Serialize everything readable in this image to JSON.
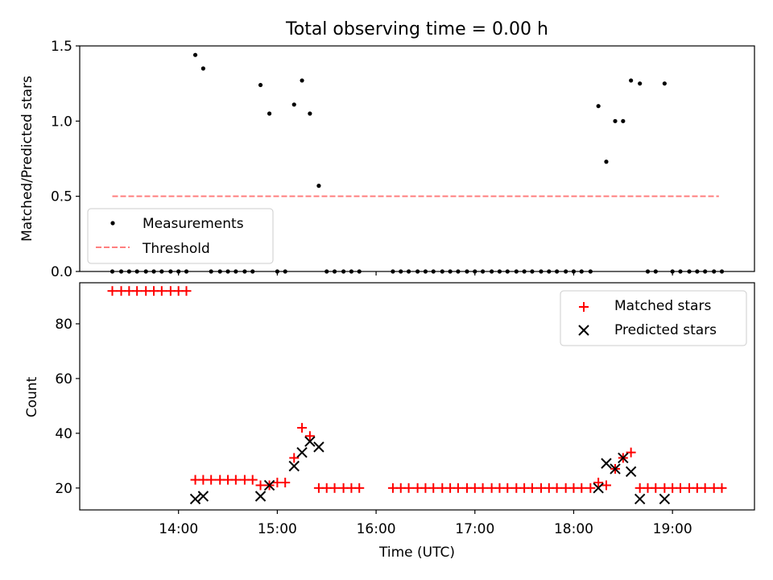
{
  "chart_data": [
    {
      "type": "scatter",
      "title": "Total observing time = 0.00 h",
      "xlabel": "",
      "ylabel": "Matched/Predicted stars",
      "xlim": [
        13.0,
        19.83
      ],
      "ylim": [
        0.0,
        1.5
      ],
      "yticks": [
        0.0,
        0.5,
        1.0,
        1.5
      ],
      "ytick_labels": [
        "0.0",
        "0.5",
        "1.0",
        "1.5"
      ],
      "xticks": [
        14,
        15,
        16,
        17,
        18,
        19
      ],
      "threshold": {
        "name": "Threshold",
        "value": 0.5,
        "x_range": [
          13.33,
          19.47
        ],
        "color": "#ff7f7f"
      },
      "series": [
        {
          "name": "Measurements",
          "color": "#000000",
          "x": [
            13.33,
            13.42,
            13.5,
            13.58,
            13.67,
            13.75,
            13.83,
            13.92,
            14.0,
            14.08,
            14.17,
            14.25,
            14.33,
            14.42,
            14.5,
            14.58,
            14.67,
            14.75,
            14.83,
            14.92,
            15.0,
            15.08,
            15.17,
            15.25,
            15.33,
            15.42,
            15.5,
            15.58,
            15.67,
            15.75,
            15.83,
            16.17,
            16.25,
            16.33,
            16.42,
            16.5,
            16.58,
            16.67,
            16.75,
            16.83,
            16.92,
            17.0,
            17.08,
            17.17,
            17.25,
            17.33,
            17.42,
            17.5,
            17.58,
            17.67,
            17.75,
            17.83,
            17.92,
            18.0,
            18.08,
            18.17,
            18.25,
            18.33,
            18.42,
            18.5,
            18.58,
            18.67,
            18.75,
            18.83,
            18.92,
            19.0,
            19.08,
            19.17,
            19.25,
            19.33,
            19.42,
            19.5
          ],
          "y": [
            0,
            0,
            0,
            0,
            0,
            0,
            0,
            0,
            0,
            0,
            1.44,
            1.35,
            0,
            0,
            0,
            0,
            0,
            0,
            1.24,
            1.05,
            0,
            0,
            1.11,
            1.27,
            1.05,
            0.57,
            0,
            0,
            0,
            0,
            0,
            0,
            0,
            0,
            0,
            0,
            0,
            0,
            0,
            0,
            0,
            0,
            0,
            0,
            0,
            0,
            0,
            0,
            0,
            0,
            0,
            0,
            0,
            0,
            0,
            0,
            1.1,
            0.73,
            1.0,
            1.0,
            1.27,
            1.25,
            0,
            0,
            1.25,
            0,
            0,
            0,
            0,
            0,
            0,
            0
          ]
        }
      ],
      "legend": "lower-left"
    },
    {
      "type": "scatter",
      "title": "",
      "xlabel": "Time (UTC)",
      "ylabel": "Count",
      "xlim": [
        13.0,
        19.83
      ],
      "ylim": [
        12,
        95
      ],
      "yticks": [
        20,
        40,
        60,
        80
      ],
      "ytick_labels": [
        "20",
        "40",
        "60",
        "80"
      ],
      "xticks": [
        14,
        15,
        16,
        17,
        18,
        19
      ],
      "xtick_labels": [
        "14:00",
        "15:00",
        "16:00",
        "17:00",
        "18:00",
        "19:00"
      ],
      "series": [
        {
          "name": "Matched stars",
          "color": "#ff0000",
          "marker": "plus",
          "x": [
            13.33,
            13.42,
            13.5,
            13.58,
            13.67,
            13.75,
            13.83,
            13.92,
            14.0,
            14.08,
            14.17,
            14.25,
            14.33,
            14.42,
            14.5,
            14.58,
            14.67,
            14.75,
            14.83,
            14.92,
            15.0,
            15.08,
            15.17,
            15.25,
            15.33,
            15.42,
            15.5,
            15.58,
            15.67,
            15.75,
            15.83,
            16.17,
            16.25,
            16.33,
            16.42,
            16.5,
            16.58,
            16.67,
            16.75,
            16.83,
            16.92,
            17.0,
            17.08,
            17.17,
            17.25,
            17.33,
            17.42,
            17.5,
            17.58,
            17.67,
            17.75,
            17.83,
            17.92,
            18.0,
            18.08,
            18.17,
            18.25,
            18.33,
            18.42,
            18.5,
            18.58,
            18.67,
            18.75,
            18.83,
            18.92,
            19.0,
            19.08,
            19.17,
            19.25,
            19.33,
            19.42,
            19.5
          ],
          "y": [
            92,
            92,
            92,
            92,
            92,
            92,
            92,
            92,
            92,
            92,
            23,
            23,
            23,
            23,
            23,
            23,
            23,
            23,
            21,
            21,
            22,
            22,
            31,
            42,
            39,
            20,
            20,
            20,
            20,
            20,
            20,
            20,
            20,
            20,
            20,
            20,
            20,
            20,
            20,
            20,
            20,
            20,
            20,
            20,
            20,
            20,
            20,
            20,
            20,
            20,
            20,
            20,
            20,
            20,
            20,
            20,
            22,
            21,
            27,
            31,
            33,
            20,
            20,
            20,
            20,
            20,
            20,
            20,
            20,
            20,
            20,
            20
          ]
        },
        {
          "name": "Predicted stars",
          "color": "#000000",
          "marker": "x",
          "x": [
            14.17,
            14.25,
            14.83,
            14.92,
            15.17,
            15.25,
            15.33,
            15.42,
            18.25,
            18.33,
            18.42,
            18.5,
            18.58,
            18.67,
            18.92
          ],
          "y": [
            16,
            17,
            17,
            21,
            28,
            33,
            37,
            35,
            20,
            29,
            27,
            31,
            26,
            16,
            16
          ]
        }
      ],
      "legend": "upper-right"
    }
  ]
}
